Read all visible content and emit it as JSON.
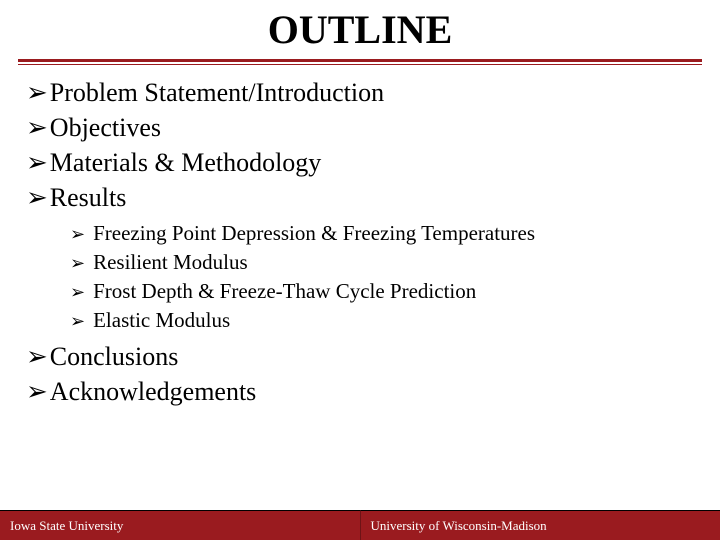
{
  "title": "OUTLINE",
  "colors": {
    "rule": "#9a1b1f",
    "footer_bg": "#9a1b1f",
    "footer_text": "#ffffff",
    "body_text": "#000000",
    "background": "#ffffff"
  },
  "typography": {
    "title_fontsize": 40,
    "title_weight": "bold",
    "l1_fontsize": 26,
    "l2_fontsize": 21,
    "footer_fontsize": 13,
    "font_family": "Times New Roman"
  },
  "bullets_l1": [
    "Problem Statement/Introduction",
    "Objectives",
    "Materials & Methodology",
    "Results",
    "Conclusions",
    "Acknowledgements"
  ],
  "bullets_results_sub": [
    "Freezing Point Depression & Freezing Temperatures",
    "Resilient Modulus",
    "Frost Depth & Freeze-Thaw Cycle Prediction",
    "Elastic Modulus"
  ],
  "bullet_glyph": "➢",
  "footer": {
    "left": "Iowa State University",
    "right": "University of Wisconsin-Madison"
  }
}
